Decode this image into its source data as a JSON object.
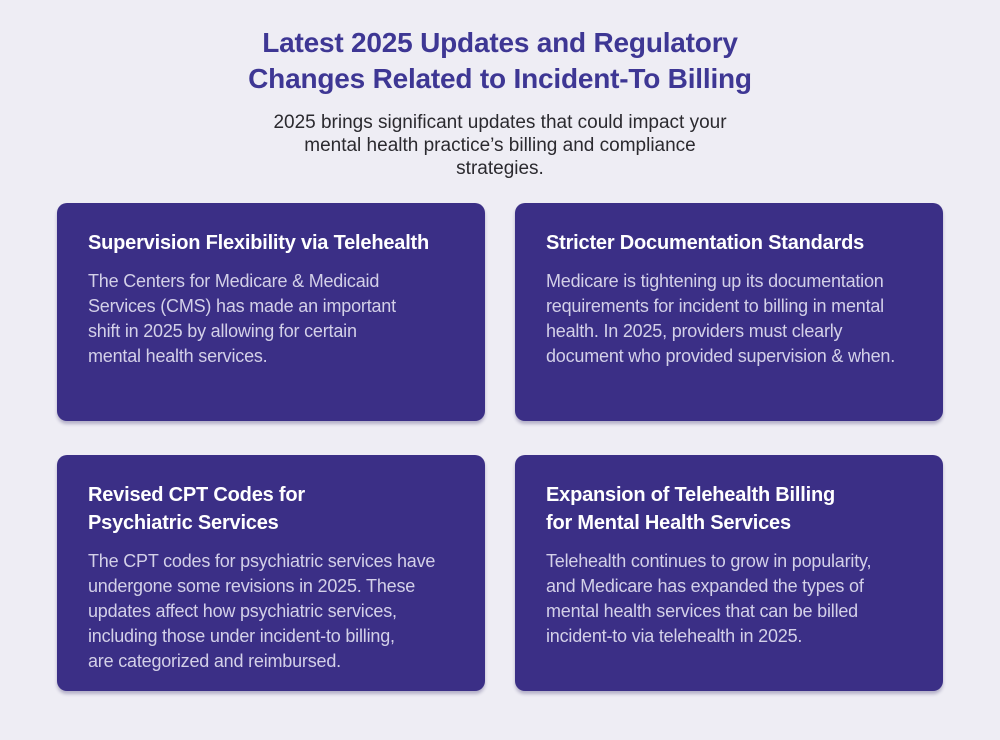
{
  "header": {
    "title": "Latest 2025 Updates and Regulatory\nChanges Related to Incident-To Billing",
    "subtitle": "2025 brings significant updates that could impact your\nmental health practice’s billing and compliance\nstrategies."
  },
  "cards": [
    {
      "heading": "Supervision Flexibility via Telehealth",
      "body": "The Centers for Medicare & Medicaid\nServices (CMS) has made an important\nshift in 2025 by allowing for certain\nmental health services."
    },
    {
      "heading": "Stricter Documentation Standards",
      "body": "Medicare is tightening up its documentation\nrequirements for incident to billing in mental\nhealth. In 2025, providers must clearly\ndocument who provided supervision & when."
    },
    {
      "heading": "Revised CPT Codes for\nPsychiatric Services",
      "body": "The CPT codes for psychiatric services have\nundergone some revisions in 2025. These\nupdates affect how psychiatric services,\nincluding those under incident-to billing,\nare categorized and reimbursed."
    },
    {
      "heading": "Expansion of Telehealth Billing\nfor Mental Health Services",
      "body": "Telehealth continues to grow in popularity,\nand Medicare has expanded the types of\nmental health services that can be billed\nincident-to via telehealth in 2025."
    }
  ],
  "colors": {
    "page_background": "#eeedf4",
    "title_text": "#3e3794",
    "subtitle_text": "#2b2a2f",
    "card_background": "#3b2f86",
    "card_heading_text": "#ffffff",
    "card_body_text": "#d3d0e8"
  }
}
